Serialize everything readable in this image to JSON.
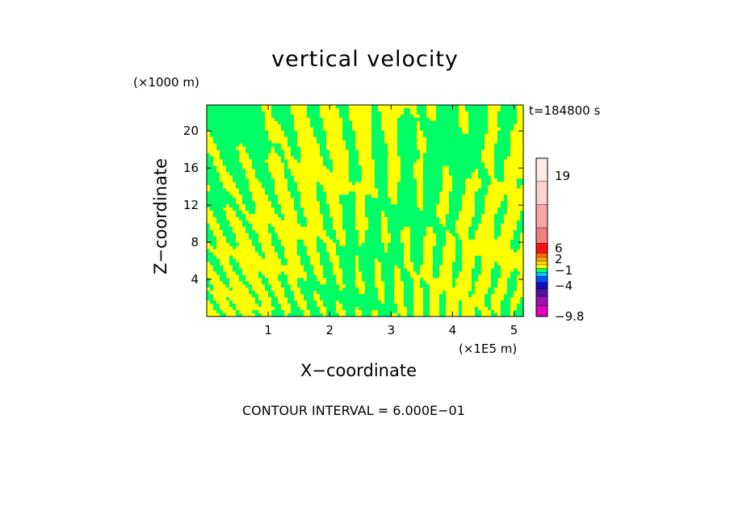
{
  "chart_data": {
    "type": "heatmap",
    "title": "vertical velocity",
    "xlabel": "X−coordinate",
    "ylabel": "Z−coordinate",
    "x_unit": "(×1E5 m)",
    "y_unit": "(×1000 m)",
    "time_label": "t=184800 s",
    "contour_interval": "CONTOUR INTERVAL = 6.000E−01",
    "xlim": [
      0,
      5.15
    ],
    "ylim": [
      0,
      22.8
    ],
    "x_ticks": [
      1,
      2,
      3,
      4,
      5
    ],
    "x_tick_labels": [
      "1",
      "2",
      "3",
      "4",
      "5"
    ],
    "y_ticks": [
      4,
      8,
      12,
      16,
      20
    ],
    "y_tick_labels": [
      "4",
      "8",
      "12",
      "16",
      "20"
    ],
    "field_colors": {
      "positive_weak": "#ffff00",
      "negative_weak": "#00ff66"
    },
    "colorbar": {
      "labels": [
        "19",
        "6",
        "2",
        "−1",
        "−4",
        "−9.8"
      ],
      "label_values": [
        19,
        6,
        2,
        -1,
        -4,
        -9.8
      ],
      "segments": [
        {
          "color": "#ffe8e8",
          "weight": 3
        },
        {
          "color": "#ffd0d0",
          "weight": 3
        },
        {
          "color": "#f8a6a6",
          "weight": 3
        },
        {
          "color": "#f08080",
          "weight": 2
        },
        {
          "color": "#ff1010",
          "weight": 1.3
        },
        {
          "color": "#ff6a00",
          "weight": 0.5
        },
        {
          "color": "#ffa000",
          "weight": 0.5
        },
        {
          "color": "#ffd800",
          "weight": 0.5
        },
        {
          "color": "#ffff00",
          "weight": 0.5
        },
        {
          "color": "#00ff66",
          "weight": 0.5
        },
        {
          "color": "#00c0ff",
          "weight": 0.5
        },
        {
          "color": "#0050ff",
          "weight": 0.8
        },
        {
          "color": "#1010c0",
          "weight": 0.8
        },
        {
          "color": "#5010a0",
          "weight": 1
        },
        {
          "color": "#a010b0",
          "weight": 1.2
        },
        {
          "color": "#e000c0",
          "weight": 1.4
        }
      ]
    }
  }
}
